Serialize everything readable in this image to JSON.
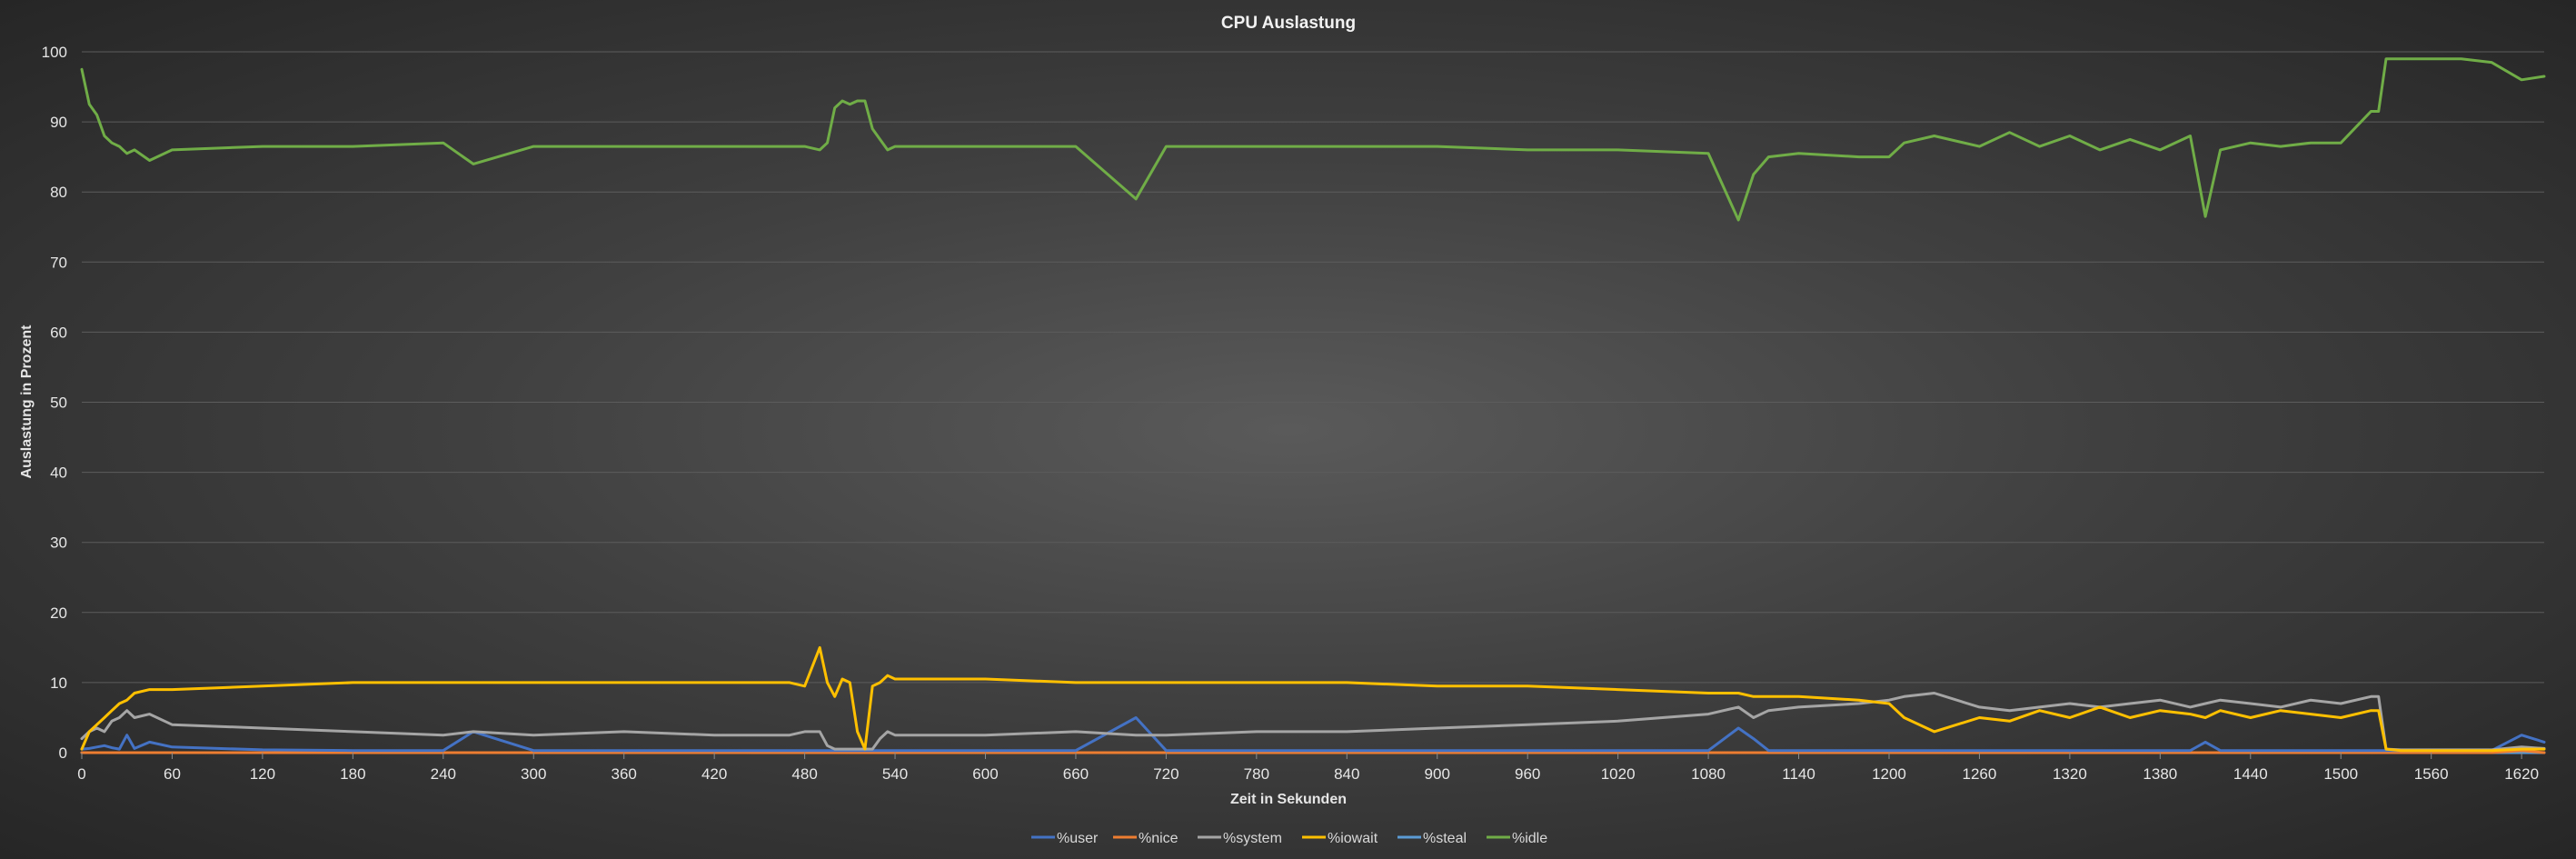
{
  "colors": {
    "user": "#4472c4",
    "nice": "#ed7d31",
    "system": "#a5a5a5",
    "iowait": "#ffc000",
    "steal": "#5b9bd5",
    "idle": "#70ad47",
    "grid": "#5c5c5c"
  },
  "chart_data": {
    "type": "line",
    "title": "CPU Auslastung",
    "xlabel": "Zeit in Sekunden",
    "ylabel": "Auslastung in Prozent",
    "xlim": [
      0,
      1635
    ],
    "ylim": [
      0,
      100
    ],
    "x_ticks": [
      0,
      60,
      120,
      180,
      240,
      300,
      360,
      420,
      480,
      540,
      600,
      660,
      720,
      780,
      840,
      900,
      960,
      1020,
      1080,
      1140,
      1200,
      1260,
      1320,
      1380,
      1440,
      1500,
      1560,
      1620
    ],
    "y_ticks": [
      0,
      10,
      20,
      30,
      40,
      50,
      60,
      70,
      80,
      90,
      100
    ],
    "grid": "horizontal",
    "legend_position": "bottom",
    "x": [
      0,
      5,
      10,
      15,
      20,
      25,
      30,
      35,
      45,
      60,
      120,
      180,
      240,
      260,
      300,
      360,
      420,
      470,
      480,
      490,
      495,
      500,
      505,
      510,
      515,
      520,
      525,
      530,
      535,
      540,
      600,
      660,
      700,
      720,
      780,
      840,
      900,
      960,
      1020,
      1080,
      1100,
      1110,
      1120,
      1140,
      1180,
      1200,
      1210,
      1230,
      1260,
      1280,
      1300,
      1320,
      1340,
      1360,
      1380,
      1400,
      1410,
      1420,
      1440,
      1460,
      1480,
      1500,
      1520,
      1525,
      1530,
      1540,
      1560,
      1580,
      1600,
      1620,
      1635
    ],
    "series": [
      {
        "name": "%user",
        "values": [
          0.5,
          0.6,
          0.8,
          1.0,
          0.7,
          0.5,
          2.5,
          0.6,
          1.5,
          0.8,
          0.4,
          0.3,
          0.3,
          3.0,
          0.3,
          0.3,
          0.3,
          0.3,
          0.3,
          0.3,
          0.3,
          0.3,
          0.3,
          0.3,
          0.3,
          0.3,
          0.3,
          0.3,
          0.3,
          0.3,
          0.3,
          0.3,
          5.0,
          0.3,
          0.3,
          0.3,
          0.3,
          0.3,
          0.3,
          0.3,
          3.5,
          2.0,
          0.3,
          0.3,
          0.3,
          0.3,
          0.3,
          0.3,
          0.3,
          0.3,
          0.3,
          0.3,
          0.3,
          0.3,
          0.3,
          0.3,
          1.5,
          0.3,
          0.3,
          0.3,
          0.3,
          0.3,
          0.3,
          0.3,
          0.3,
          0.3,
          0.3,
          0.3,
          0.3,
          2.5,
          1.5
        ]
      },
      {
        "name": "%nice",
        "values": [
          0,
          0,
          0,
          0,
          0,
          0,
          0,
          0,
          0,
          0,
          0,
          0,
          0,
          0,
          0,
          0,
          0,
          0,
          0,
          0,
          0,
          0,
          0,
          0,
          0,
          0,
          0,
          0,
          0,
          0,
          0,
          0,
          0,
          0,
          0,
          0,
          0,
          0,
          0,
          0,
          0,
          0,
          0,
          0,
          0,
          0,
          0,
          0,
          0,
          0,
          0,
          0,
          0,
          0,
          0,
          0,
          0,
          0,
          0,
          0,
          0,
          0,
          0,
          0,
          0,
          0,
          0,
          0,
          0,
          0.3,
          0
        ]
      },
      {
        "name": "%system",
        "values": [
          2.0,
          3.0,
          3.5,
          3.0,
          4.5,
          5.0,
          6.0,
          5.0,
          5.5,
          4.0,
          3.5,
          3.0,
          2.5,
          3.0,
          2.5,
          3.0,
          2.5,
          2.5,
          3.0,
          3.0,
          1.0,
          0.5,
          0.5,
          0.5,
          0.5,
          0.5,
          0.5,
          2.0,
          3.0,
          2.5,
          2.5,
          3.0,
          2.5,
          2.5,
          3.0,
          3.0,
          3.5,
          4.0,
          4.5,
          5.5,
          6.5,
          5.0,
          6.0,
          6.5,
          7.0,
          7.5,
          8.0,
          8.5,
          6.5,
          6.0,
          6.5,
          7.0,
          6.5,
          7.0,
          7.5,
          6.5,
          7.0,
          7.5,
          7.0,
          6.5,
          7.5,
          7.0,
          8.0,
          8.0,
          0.5,
          0.4,
          0.4,
          0.4,
          0.4,
          0.8,
          0.6
        ]
      },
      {
        "name": "%iowait",
        "values": [
          0.5,
          3.0,
          4.0,
          5.0,
          6.0,
          7.0,
          7.5,
          8.5,
          9.0,
          9.0,
          9.5,
          10.0,
          10.0,
          10.0,
          10.0,
          10.0,
          10.0,
          10.0,
          9.5,
          15.0,
          10.0,
          8.0,
          10.5,
          10.0,
          3.0,
          0.5,
          9.5,
          10.0,
          11.0,
          10.5,
          10.5,
          10.0,
          10.0,
          10.0,
          10.0,
          10.0,
          9.5,
          9.5,
          9.0,
          8.5,
          8.5,
          8.0,
          8.0,
          8.0,
          7.5,
          7.0,
          5.0,
          3.0,
          5.0,
          4.5,
          6.0,
          5.0,
          6.5,
          5.0,
          6.0,
          5.5,
          5.0,
          6.0,
          5.0,
          6.0,
          5.5,
          5.0,
          6.0,
          6.0,
          0.5,
          0.3,
          0.3,
          0.3,
          0.3,
          0.5,
          0.5
        ]
      },
      {
        "name": "%steal",
        "values": [
          0,
          0,
          0,
          0,
          0,
          0,
          0,
          0,
          0,
          0,
          0,
          0,
          0,
          0,
          0,
          0,
          0,
          0,
          0,
          0,
          0,
          0,
          0,
          0,
          0,
          0,
          0,
          0,
          0,
          0,
          0,
          0,
          0,
          0,
          0,
          0,
          0,
          0,
          0,
          0,
          0,
          0,
          0,
          0,
          0,
          0,
          0,
          0,
          0,
          0,
          0,
          0,
          0,
          0,
          0,
          0,
          0,
          0,
          0,
          0,
          0,
          0,
          0,
          0,
          0,
          0,
          0,
          0,
          0,
          0,
          0
        ]
      },
      {
        "name": "%idle",
        "values": [
          97.5,
          92.5,
          91.0,
          88.0,
          87.0,
          86.5,
          85.5,
          86.0,
          84.5,
          86.0,
          86.5,
          86.5,
          87.0,
          84.0,
          86.5,
          86.5,
          86.5,
          86.5,
          86.5,
          86.0,
          87.0,
          92.0,
          93.0,
          92.5,
          93.0,
          93.0,
          89.0,
          87.5,
          86.0,
          86.5,
          86.5,
          86.5,
          79.0,
          86.5,
          86.5,
          86.5,
          86.5,
          86.0,
          86.0,
          85.5,
          76.0,
          82.5,
          85.0,
          85.5,
          85.0,
          85.0,
          87.0,
          88.0,
          86.5,
          88.5,
          86.5,
          88.0,
          86.0,
          87.5,
          86.0,
          88.0,
          76.5,
          86.0,
          87.0,
          86.5,
          87.0,
          87.0,
          91.5,
          91.5,
          99.0,
          99.0,
          99.0,
          99.0,
          98.5,
          96.0,
          96.5
        ]
      }
    ]
  }
}
